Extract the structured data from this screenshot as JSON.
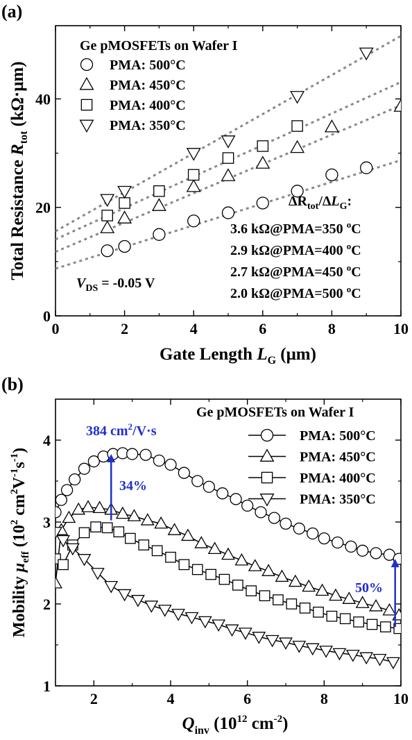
{
  "chart_data": [
    {
      "panel": "(a)",
      "type": "scatter",
      "title": "Ge pMOSFETs on Wafer I",
      "xlabel": {
        "main": "Gate Length ",
        "italic": "L",
        "sub": "G",
        "unit": " (μm)"
      },
      "ylabel": {
        "main": "Total Resistance ",
        "italic": "R",
        "sub": "tot",
        "unit": " (kΩ·μm)"
      },
      "xlim": [
        0,
        10
      ],
      "ylim": [
        0,
        53.5
      ],
      "xticks": [
        0,
        2,
        4,
        6,
        8,
        10
      ],
      "yticks": [
        0,
        20,
        40
      ],
      "grid": false,
      "legend_position": "top-left",
      "series": [
        {
          "name": "PMA: 500°C",
          "marker": "circle",
          "x": [
            1.5,
            2,
            3,
            4,
            5,
            6,
            7,
            8,
            9
          ],
          "y": [
            12,
            12.8,
            15,
            17.5,
            19,
            20.8,
            23,
            26,
            27.3
          ],
          "fit": {
            "intercept": 8.7,
            "slope": 2.0
          }
        },
        {
          "name": "PMA: 450°C",
          "marker": "triangle-up",
          "x": [
            1.5,
            2,
            3,
            4,
            5,
            6,
            7,
            8,
            10
          ],
          "y": [
            16.2,
            18,
            20.3,
            23.8,
            25.8,
            28.1,
            31,
            34.8,
            38.6
          ],
          "fit": {
            "intercept": 11.8,
            "slope": 2.7
          }
        },
        {
          "name": "PMA: 400°C",
          "marker": "square",
          "x": [
            1.5,
            2,
            3,
            4,
            5,
            6,
            7
          ],
          "y": [
            18.5,
            20.8,
            23,
            26,
            29.1,
            31.3,
            35
          ],
          "fit": {
            "intercept": 14.1,
            "slope": 2.9
          }
        },
        {
          "name": "PMA: 350°C",
          "marker": "triangle-down",
          "x": [
            1.5,
            2,
            4,
            5,
            7,
            9
          ],
          "y": [
            21.5,
            23,
            30,
            32.3,
            40.5,
            48.5
          ],
          "fit": {
            "intercept": 15.6,
            "slope": 3.6
          }
        }
      ],
      "annotations": {
        "vds": {
          "italic": "V",
          "sub": "DS",
          "rest": " = -0.05 V"
        },
        "slope_header": {
          "a": "ΔR",
          "a_sub": "tot",
          "b": "/Δ",
          "b_italic": "L",
          "b_sub": "G",
          "c": ":"
        },
        "slopes": [
          {
            "pre": "3.6 kΩ@PMA=350 ",
            "sup": "o",
            "post": "C"
          },
          {
            "pre": "2.9 kΩ@PMA=400 ",
            "sup": "o",
            "post": "C"
          },
          {
            "pre": "2.7 kΩ@PMA=450 ",
            "sup": "o",
            "post": "C"
          },
          {
            "pre": "2.0 kΩ@PMA=500 ",
            "sup": "o",
            "post": "C"
          }
        ]
      }
    },
    {
      "panel": "(b)",
      "type": "line",
      "title": "Ge pMOSFETs on Wafer I",
      "xlabel": {
        "italic": "Q",
        "sub": "inv",
        "rest": " (10",
        "sup": "12",
        "rest2": " cm",
        "sup2": "-2",
        "end": ")"
      },
      "ylabel": {
        "main": "Mobility ",
        "italic": "μ",
        "sub": "eff",
        "rest": " (10",
        "sup": "2",
        "rest2": " cm",
        "sup2": "2",
        "rest3": "V",
        "sup3": "-1",
        "rest4": "s",
        "sup4": "-1",
        "end": ")"
      },
      "xlim": [
        1,
        10
      ],
      "ylim": [
        1,
        4.5
      ],
      "xticks": [
        2,
        4,
        6,
        8,
        10
      ],
      "yticks": [
        1,
        2,
        3,
        4
      ],
      "grid": false,
      "legend_position": "top-right",
      "series": [
        {
          "name": "PMA: 500°C",
          "marker": "circle",
          "x": [
            1.0,
            1.15,
            1.3,
            1.5,
            1.75,
            2.0,
            2.25,
            2.5,
            2.75,
            3.0,
            3.35,
            3.7,
            4.0,
            4.35,
            4.7,
            5.0,
            5.35,
            5.7,
            6.0,
            6.35,
            6.7,
            7.0,
            7.35,
            7.7,
            8.0,
            8.35,
            8.7,
            9.0,
            9.35,
            9.7,
            9.95
          ],
          "y": [
            3.12,
            3.27,
            3.39,
            3.52,
            3.65,
            3.74,
            3.8,
            3.83,
            3.84,
            3.83,
            3.82,
            3.75,
            3.7,
            3.6,
            3.5,
            3.43,
            3.35,
            3.28,
            3.2,
            3.12,
            3.05,
            2.98,
            2.92,
            2.86,
            2.8,
            2.75,
            2.7,
            2.65,
            2.62,
            2.6,
            2.55
          ]
        },
        {
          "name": "PMA: 450°C",
          "marker": "triangle-up",
          "x": [
            1.0,
            1.15,
            1.35,
            1.6,
            1.85,
            2.15,
            2.45,
            2.75,
            3.05,
            3.4,
            3.75,
            4.1,
            4.45,
            4.8,
            5.15,
            5.5,
            5.85,
            6.2,
            6.55,
            6.9,
            7.25,
            7.6,
            7.95,
            8.3,
            8.65,
            9.0,
            9.35,
            9.7,
            9.95
          ],
          "y": [
            2.25,
            2.9,
            3.05,
            3.15,
            3.18,
            3.17,
            3.15,
            3.1,
            3.07,
            3.02,
            2.98,
            2.9,
            2.83,
            2.74,
            2.67,
            2.6,
            2.53,
            2.46,
            2.4,
            2.33,
            2.27,
            2.21,
            2.16,
            2.1,
            2.06,
            2.01,
            1.97,
            1.92,
            1.86
          ]
        },
        {
          "name": "PMA: 400°C",
          "marker": "square",
          "x": [
            1.0,
            1.2,
            1.45,
            1.75,
            2.05,
            2.35,
            2.65,
            2.95,
            3.3,
            3.65,
            4.0,
            4.35,
            4.7,
            5.05,
            5.4,
            5.75,
            6.1,
            6.45,
            6.8,
            7.15,
            7.5,
            7.85,
            8.2,
            8.55,
            8.9,
            9.25,
            9.6,
            9.95
          ],
          "y": [
            2.55,
            2.48,
            2.72,
            2.87,
            2.94,
            2.93,
            2.88,
            2.8,
            2.72,
            2.65,
            2.57,
            2.48,
            2.42,
            2.36,
            2.3,
            2.23,
            2.16,
            2.1,
            2.05,
            2.0,
            1.95,
            1.9,
            1.85,
            1.82,
            1.78,
            1.75,
            1.72,
            1.7
          ]
        },
        {
          "name": "PMA: 350°C",
          "marker": "triangle-down",
          "x": [
            1.0,
            1.2,
            1.45,
            1.75,
            2.1,
            2.45,
            2.8,
            3.15,
            3.5,
            3.85,
            4.2,
            4.55,
            4.9,
            5.25,
            5.6,
            5.95,
            6.3,
            6.65,
            7.0,
            7.35,
            7.7,
            8.05,
            8.4,
            8.75,
            9.1,
            9.45,
            9.8
          ],
          "y": [
            2.88,
            2.78,
            2.68,
            2.55,
            2.38,
            2.22,
            2.12,
            2.05,
            1.98,
            1.93,
            1.88,
            1.84,
            1.79,
            1.75,
            1.69,
            1.65,
            1.6,
            1.56,
            1.53,
            1.49,
            1.46,
            1.43,
            1.4,
            1.38,
            1.35,
            1.33,
            1.29
          ]
        }
      ],
      "annotations": {
        "peak": {
          "pre": "384 cm",
          "sup": "2",
          "post": "/V·s"
        },
        "pct34": "34%",
        "pct50": "50%",
        "arrow34": {
          "x": 2.45,
          "y_from": 3.02,
          "y_to": 3.83
        },
        "arrow50": {
          "x": 9.85,
          "y_from": 1.72,
          "y_to": 2.55
        },
        "color": "#1f2fcf"
      }
    }
  ]
}
